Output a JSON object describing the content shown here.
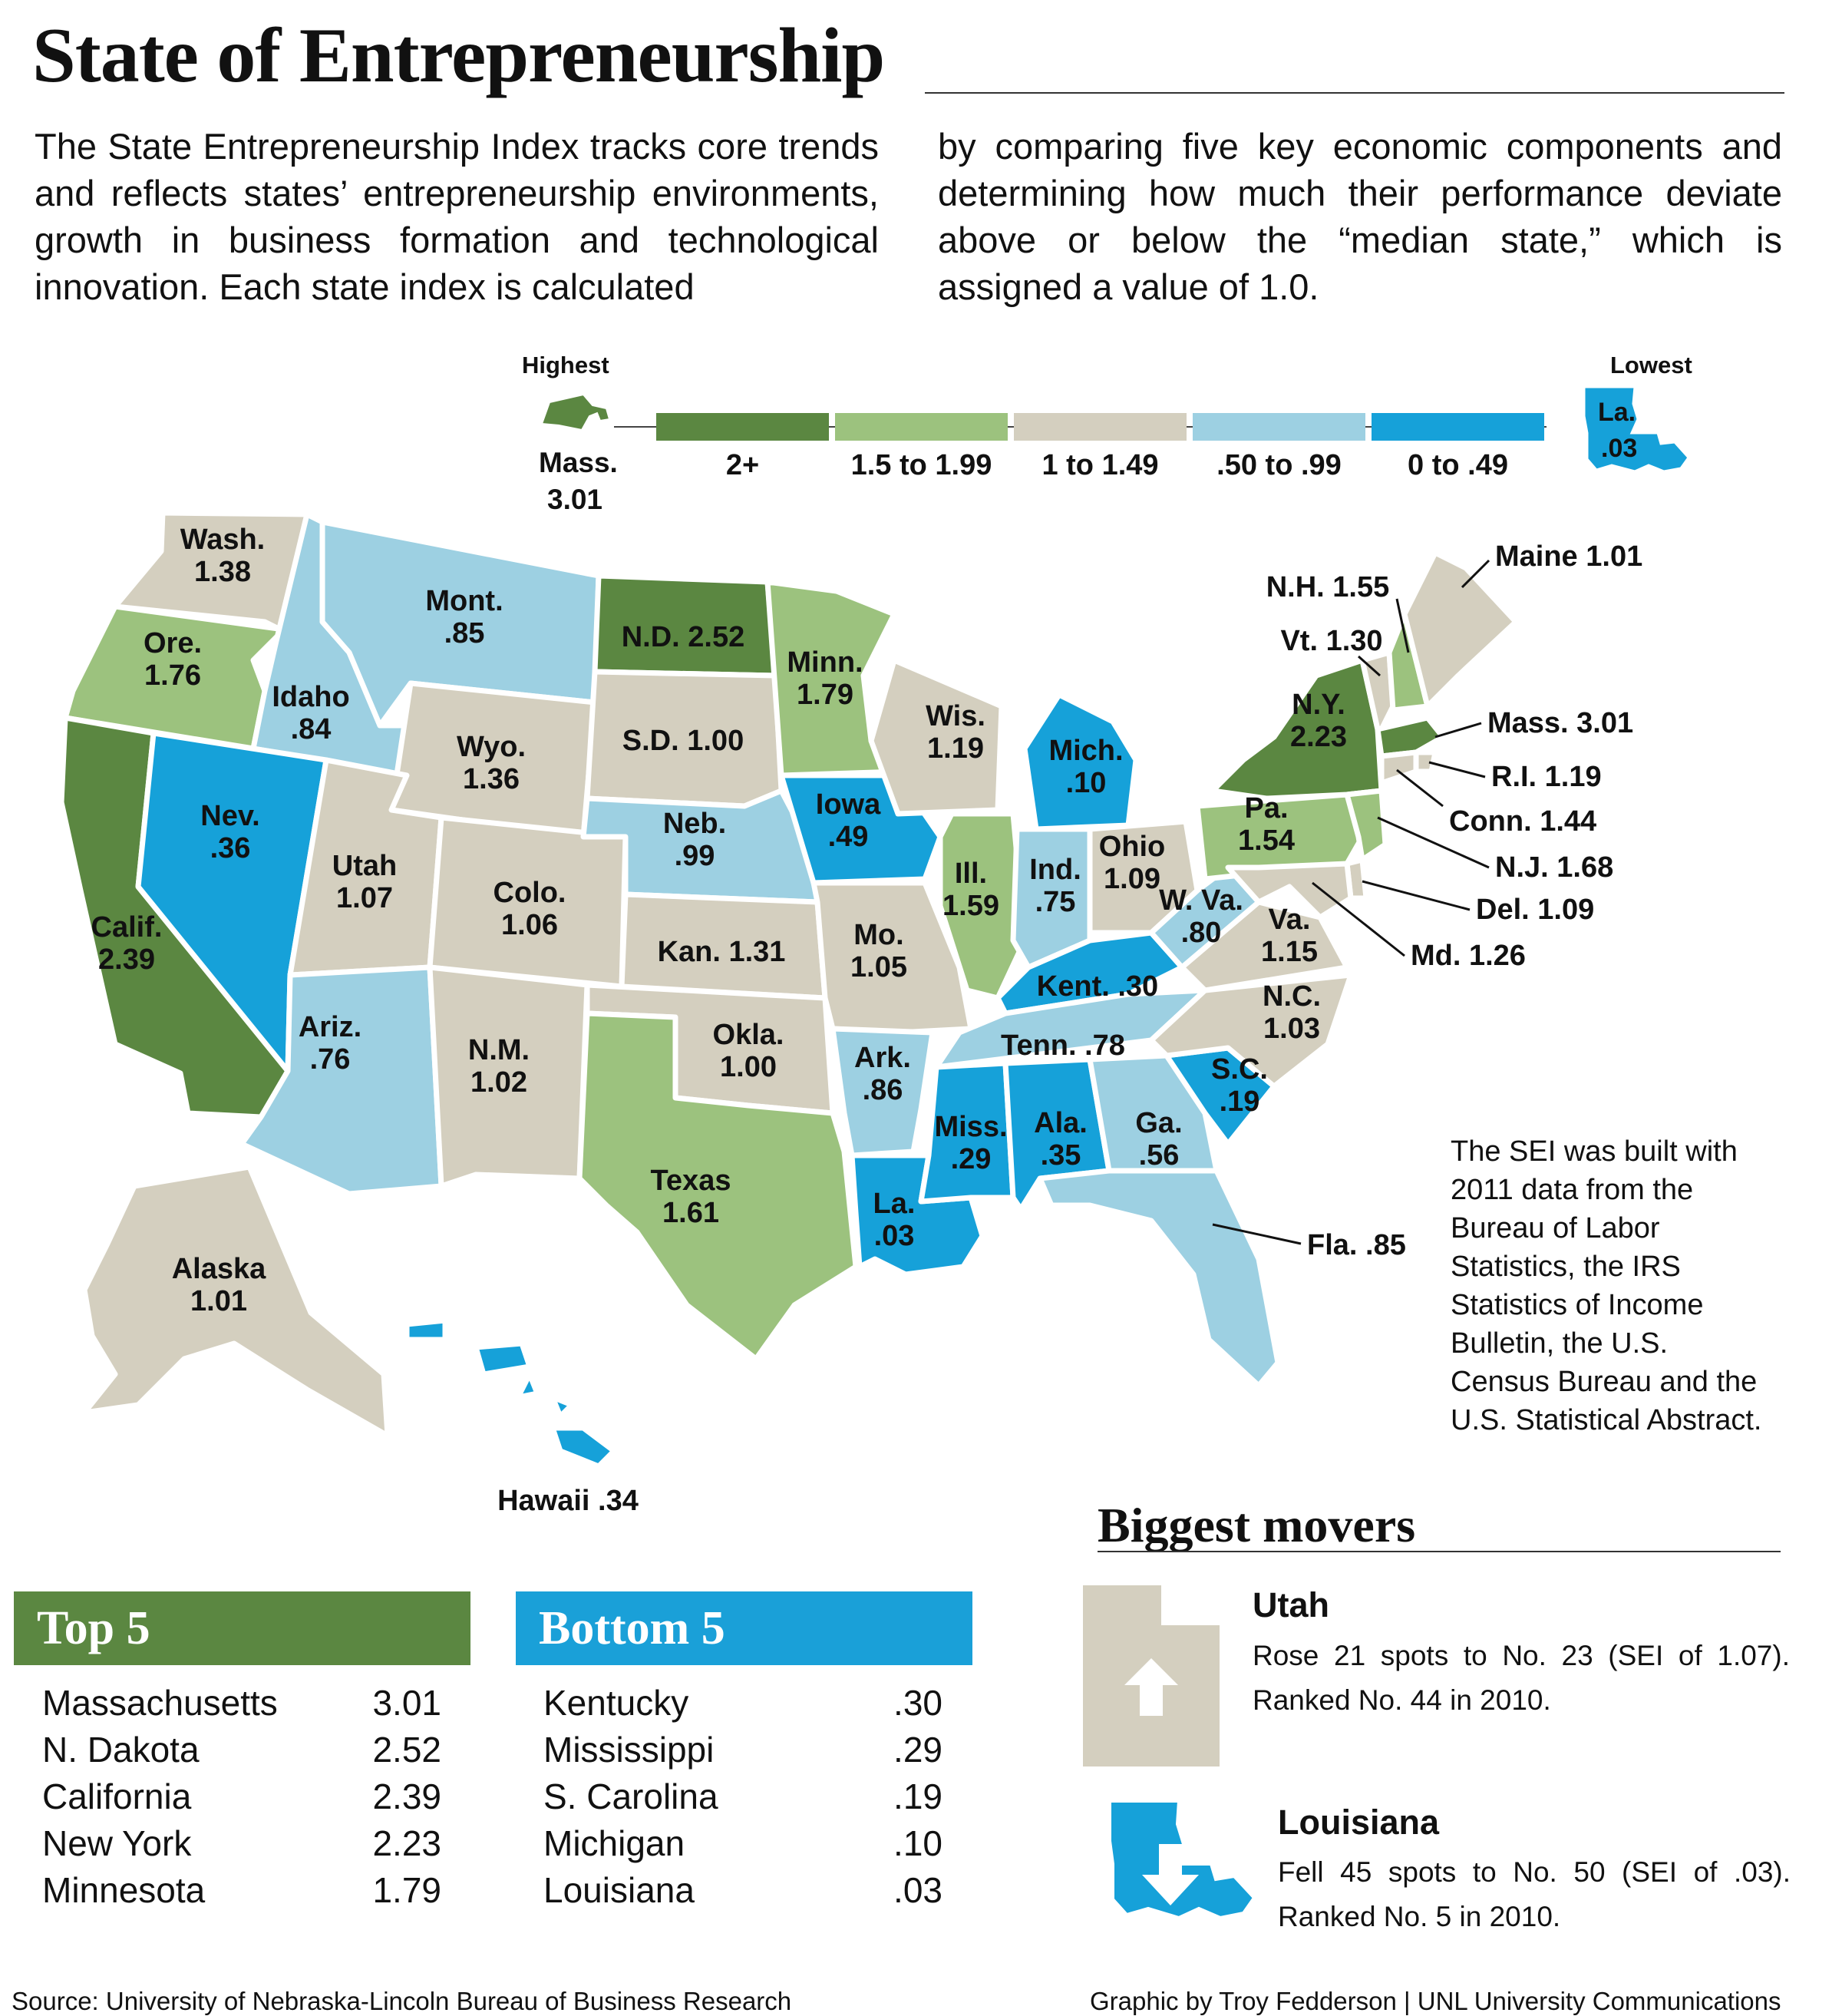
{
  "title": "State of Entrepreneurship",
  "intro": {
    "left": "The State Entrepreneurship Index tracks core trends and reflects states’ entrepreneurship environments, growth in business formation and technological innovation. Each state index is calculated",
    "right": "by comparing five key economic components and determining how much their performance deviate above or below the “median state,” which is assigned a value of 1.0."
  },
  "colors": {
    "dark_green": "#5b8741",
    "light_green": "#9cc27e",
    "tan": "#d4cfbf",
    "light_blue": "#9dd0e2",
    "blue": "#16a1d9",
    "border": "#ffffff"
  },
  "legend": {
    "highest_label": "Highest",
    "lowest_label": "Lowest",
    "highest_state": "Mass.",
    "highest_value": "3.01",
    "lowest_state": "La.",
    "lowest_value": ".03",
    "bins": [
      {
        "label": "2+",
        "color": "#5b8741"
      },
      {
        "label": "1.5 to 1.99",
        "color": "#9cc27e"
      },
      {
        "label": "1 to 1.49",
        "color": "#d4cfbf"
      },
      {
        "label": ".50 to .99",
        "color": "#9dd0e2"
      },
      {
        "label": "0 to .49",
        "color": "#16a1d9"
      }
    ]
  },
  "states": [
    {
      "name": "Wash.",
      "value": "1.38",
      "cat": 2
    },
    {
      "name": "Ore.",
      "value": "1.76",
      "cat": 1
    },
    {
      "name": "Calif.",
      "value": "2.39",
      "cat": 0
    },
    {
      "name": "Idaho",
      "value": ".84",
      "cat": 3
    },
    {
      "name": "Nev.",
      "value": ".36",
      "cat": 4
    },
    {
      "name": "Mont.",
      "value": ".85",
      "cat": 3
    },
    {
      "name": "Wyo.",
      "value": "1.36",
      "cat": 2
    },
    {
      "name": "Utah",
      "value": "1.07",
      "cat": 2
    },
    {
      "name": "Ariz.",
      "value": ".76",
      "cat": 3
    },
    {
      "name": "Colo.",
      "value": "1.06",
      "cat": 2
    },
    {
      "name": "N.M.",
      "value": "1.02",
      "cat": 2
    },
    {
      "name": "N.D.",
      "value": "2.52",
      "cat": 0
    },
    {
      "name": "S.D.",
      "value": "1.00",
      "cat": 2
    },
    {
      "name": "Neb.",
      "value": ".99",
      "cat": 3
    },
    {
      "name": "Kan.",
      "value": "1.31",
      "cat": 2
    },
    {
      "name": "Okla.",
      "value": "1.00",
      "cat": 2
    },
    {
      "name": "Texas",
      "value": "1.61",
      "cat": 1
    },
    {
      "name": "Minn.",
      "value": "1.79",
      "cat": 1
    },
    {
      "name": "Iowa",
      "value": ".49",
      "cat": 4
    },
    {
      "name": "Mo.",
      "value": "1.05",
      "cat": 2
    },
    {
      "name": "Ark.",
      "value": ".86",
      "cat": 3
    },
    {
      "name": "La.",
      "value": ".03",
      "cat": 4
    },
    {
      "name": "Wis.",
      "value": "1.19",
      "cat": 2
    },
    {
      "name": "Ill.",
      "value": "1.59",
      "cat": 1
    },
    {
      "name": "Mich.",
      "value": ".10",
      "cat": 4
    },
    {
      "name": "Ind.",
      "value": ".75",
      "cat": 3
    },
    {
      "name": "Ohio",
      "value": "1.09",
      "cat": 2
    },
    {
      "name": "Kent.",
      "value": ".30",
      "cat": 4
    },
    {
      "name": "Tenn.",
      "value": ".78",
      "cat": 3
    },
    {
      "name": "Miss.",
      "value": ".29",
      "cat": 4
    },
    {
      "name": "Ala.",
      "value": ".35",
      "cat": 4
    },
    {
      "name": "Ga.",
      "value": ".56",
      "cat": 3
    },
    {
      "name": "Fla.",
      "value": ".85",
      "cat": 3
    },
    {
      "name": "S.C.",
      "value": ".19",
      "cat": 4
    },
    {
      "name": "N.C.",
      "value": "1.03",
      "cat": 2
    },
    {
      "name": "Va.",
      "value": "1.15",
      "cat": 2
    },
    {
      "name": "W. Va.",
      "value": ".80",
      "cat": 3
    },
    {
      "name": "Pa.",
      "value": "1.54",
      "cat": 1
    },
    {
      "name": "N.Y.",
      "value": "2.23",
      "cat": 0
    },
    {
      "name": "Vt.",
      "value": "1.30",
      "cat": 2
    },
    {
      "name": "N.H.",
      "value": "1.55",
      "cat": 1
    },
    {
      "name": "Maine",
      "value": "1.01",
      "cat": 2
    },
    {
      "name": "Mass.",
      "value": "3.01",
      "cat": 0
    },
    {
      "name": "R.I.",
      "value": "1.19",
      "cat": 2
    },
    {
      "name": "Conn.",
      "value": "1.44",
      "cat": 2
    },
    {
      "name": "N.J.",
      "value": "1.68",
      "cat": 1
    },
    {
      "name": "Del.",
      "value": "1.09",
      "cat": 2
    },
    {
      "name": "Md.",
      "value": "1.26",
      "cat": 2
    },
    {
      "name": "Alaska",
      "value": "1.01",
      "cat": 2
    },
    {
      "name": "Hawaii",
      "value": ".34",
      "cat": 4
    }
  ],
  "sei_note": "The SEI was built with 2011 data from the Bureau of Labor Statistics, the IRS Statistics of Income Bulletin, the U.S. Census Bureau and the U.S. Statistical Abstract.",
  "top5": {
    "title": "Top 5",
    "rows": [
      {
        "name": "Massachusetts",
        "value": "3.01"
      },
      {
        "name": "N. Dakota",
        "value": "2.52"
      },
      {
        "name": "California",
        "value": "2.39"
      },
      {
        "name": "New York",
        "value": "2.23"
      },
      {
        "name": "Minnesota",
        "value": "1.79"
      }
    ]
  },
  "bottom5": {
    "title": "Bottom 5",
    "rows": [
      {
        "name": "Kentucky",
        "value": ".30"
      },
      {
        "name": "Mississippi",
        "value": ".29"
      },
      {
        "name": "S. Carolina",
        "value": ".19"
      },
      {
        "name": "Michigan",
        "value": ".10"
      },
      {
        "name": "Louisiana",
        "value": ".03"
      }
    ]
  },
  "movers": {
    "title": "Biggest movers",
    "utah": {
      "name": "Utah",
      "text": "Rose 21 spots to No. 23 (SEI of 1.07). Ranked No. 44 in 2010."
    },
    "louisiana": {
      "name": "Louisiana",
      "text": "Fell 45 spots to No. 50 (SEI of .03). Ranked No. 5 in 2010."
    }
  },
  "source": "Source: University of Nebraska-Lincoln Bureau of Business Research",
  "credit": "Graphic by Troy Fedderson | UNL University Communications"
}
